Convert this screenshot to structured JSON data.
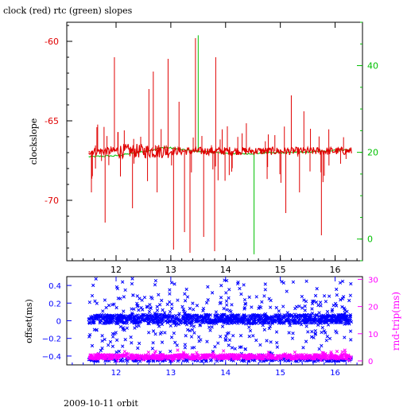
{
  "header": {
    "title": "clock (red) rtc (green) slopes"
  },
  "footer": {
    "caption": "2009-10-11 orbit"
  },
  "colors": {
    "clock": "#e00000",
    "rtc": "#00c000",
    "offset": "#0000ff",
    "rndtrip": "#ff00ff",
    "frame": "#000000"
  },
  "chart_data": [
    {
      "type": "line",
      "title": "clock (red) rtc (green) slopes",
      "xlabel": "",
      "ylabel": "clockslope",
      "xlim": [
        11.1,
        16.5
      ],
      "ylim": [
        -73.8,
        -58.8
      ],
      "y2lim": [
        -5,
        50
      ],
      "x_ticks": [
        12,
        13,
        14,
        15,
        16
      ],
      "y_ticks": [
        -60,
        -65,
        -70
      ],
      "y2_ticks": [
        0,
        20,
        40
      ],
      "series": [
        {
          "name": "clock",
          "axis": "left",
          "baseline": -66.9,
          "x_range": [
            11.5,
            16.3
          ],
          "spikes": [
            {
              "x": 11.55,
              "y": -69.5
            },
            {
              "x": 11.65,
              "y": -65.4
            },
            {
              "x": 11.8,
              "y": -71.4
            },
            {
              "x": 11.97,
              "y": -61.0
            },
            {
              "x": 12.08,
              "y": -68.5
            },
            {
              "x": 12.15,
              "y": -65.6
            },
            {
              "x": 12.3,
              "y": -70.5
            },
            {
              "x": 12.45,
              "y": -66.0
            },
            {
              "x": 12.6,
              "y": -63.0
            },
            {
              "x": 12.68,
              "y": -61.9
            },
            {
              "x": 12.75,
              "y": -69.5
            },
            {
              "x": 12.95,
              "y": -61.1
            },
            {
              "x": 13.05,
              "y": -73.1
            },
            {
              "x": 13.15,
              "y": -63.8
            },
            {
              "x": 13.25,
              "y": -72.0
            },
            {
              "x": 13.35,
              "y": -73.3
            },
            {
              "x": 13.45,
              "y": -59.8
            },
            {
              "x": 13.6,
              "y": -72.3
            },
            {
              "x": 13.8,
              "y": -73.2
            },
            {
              "x": 13.82,
              "y": -61.0
            },
            {
              "x": 14.9,
              "y": -65.9
            },
            {
              "x": 15.1,
              "y": -70.8
            },
            {
              "x": 15.2,
              "y": -63.4
            },
            {
              "x": 15.35,
              "y": -69.5
            },
            {
              "x": 15.43,
              "y": -64.4
            },
            {
              "x": 15.55,
              "y": -65.5
            },
            {
              "x": 15.75,
              "y": -72.2
            },
            {
              "x": 16.1,
              "y": -67.7
            },
            {
              "x": 16.2,
              "y": -67.4
            }
          ]
        },
        {
          "name": "rtc",
          "axis": "right",
          "x": [
            11.5,
            12.0,
            12.5,
            12.9,
            13.2,
            13.6,
            14.0,
            14.4,
            14.8,
            15.2,
            15.6,
            16.0,
            16.3
          ],
          "y": [
            19.0,
            19.2,
            20.2,
            21.2,
            20.6,
            20.1,
            19.8,
            19.7,
            19.9,
            20.0,
            20.1,
            20.4,
            20.6
          ],
          "spikes": [
            {
              "x": 13.5,
              "y": 47.0
            },
            {
              "x": 14.52,
              "y": -3.5
            }
          ]
        }
      ]
    },
    {
      "type": "scatter",
      "xlabel": "",
      "ylabel": "offset(ms)",
      "y2label": "rnd-trip(ms)",
      "xlim": [
        11.1,
        16.5
      ],
      "ylim": [
        -0.5,
        0.5
      ],
      "y2lim": [
        0,
        31
      ],
      "x_ticks": [
        12,
        13,
        14,
        15,
        16
      ],
      "y_ticks": [
        0.4,
        0.2,
        0.0,
        -0.2,
        -0.4
      ],
      "y_tick_labels": [
        "0.4",
        "0.2",
        "0",
        "−0.2",
        "−0.4"
      ],
      "y2_ticks": [
        0,
        10,
        20,
        30
      ],
      "series": [
        {
          "name": "offset",
          "axis": "left",
          "marker": "x",
          "x_range": [
            11.5,
            16.3
          ],
          "y_center": 0.02,
          "y_spread": [
            -0.46,
            0.48
          ]
        },
        {
          "name": "rnd-trip",
          "axis": "right",
          "marker": "x",
          "x_range": [
            11.5,
            16.3
          ],
          "y_center": 1.5,
          "y_spread": [
            0,
            4
          ]
        }
      ]
    }
  ]
}
